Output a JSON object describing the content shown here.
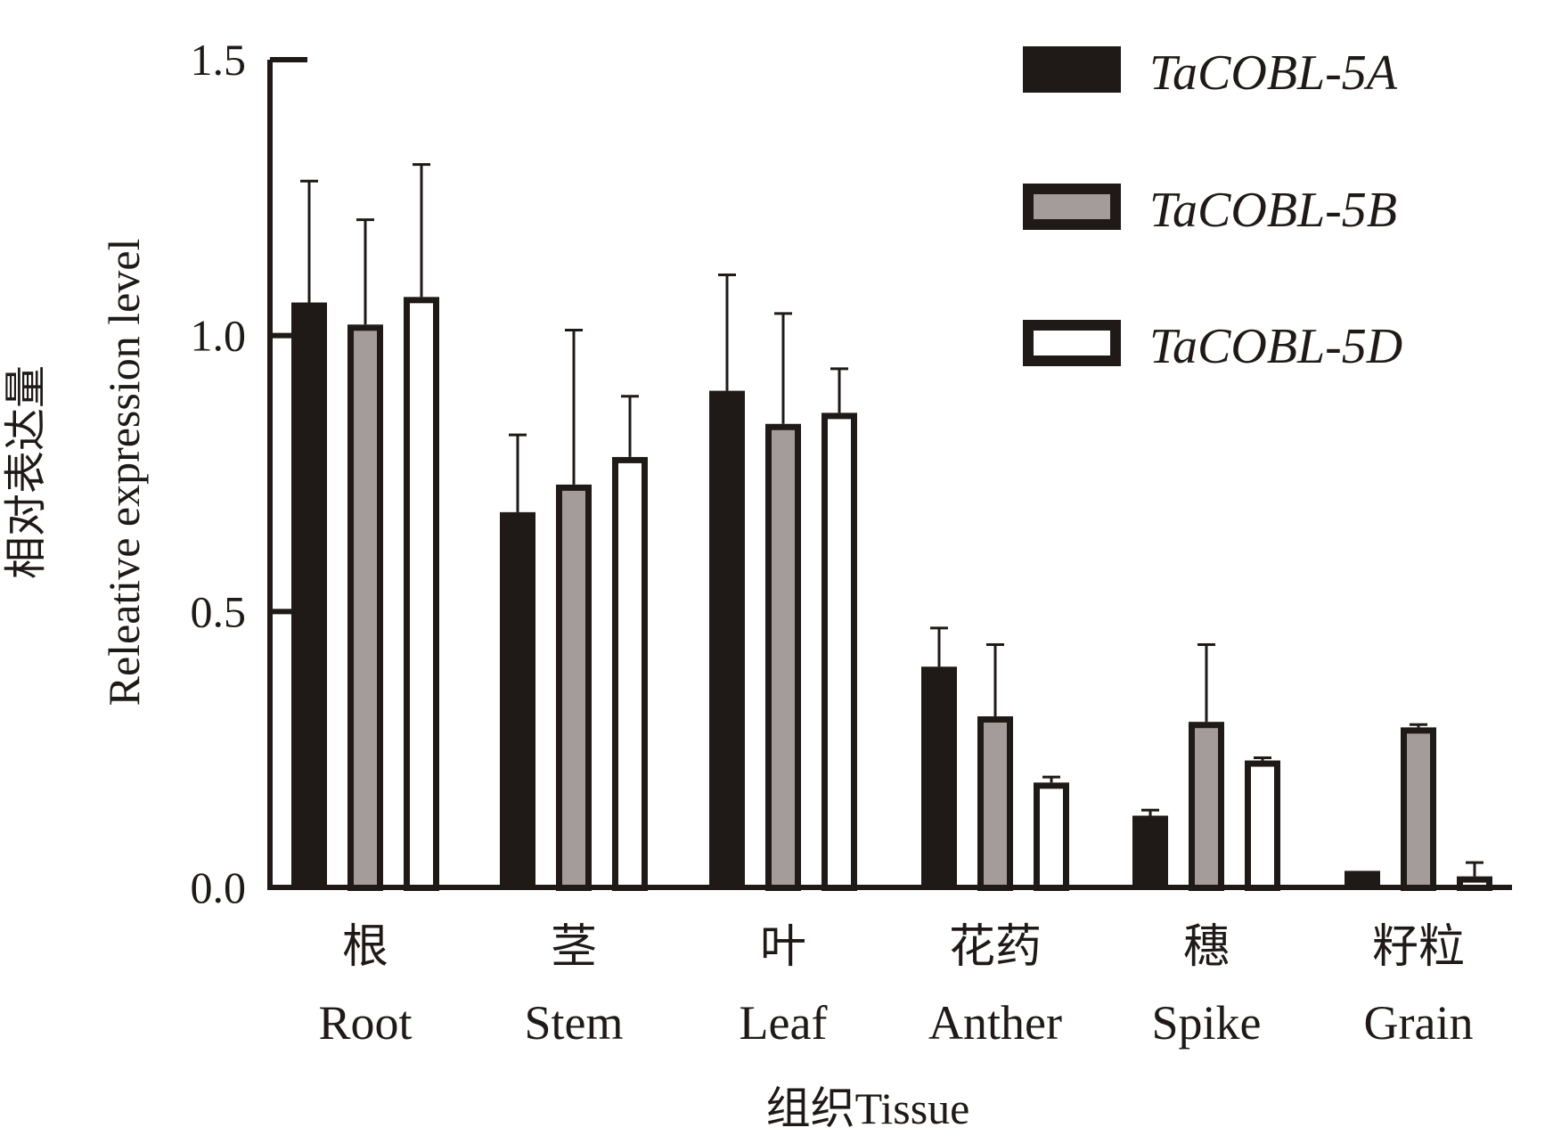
{
  "chart_data": {
    "type": "bar",
    "title": "",
    "xlabel_cn": "组织",
    "xlabel_en": "Tissue",
    "ylabel_cn": "相对表达量",
    "ylabel_en": "Releative expression level",
    "ylim": [
      0,
      1.5
    ],
    "yticks": [
      0.0,
      0.5,
      1.0,
      1.5
    ],
    "ytick_labels": [
      "0.0",
      "0.5",
      "1.0",
      "1.5"
    ],
    "categories": [
      {
        "cn": "根",
        "en": "Root"
      },
      {
        "cn": "茎",
        "en": "Stem"
      },
      {
        "cn": "叶",
        "en": "Leaf"
      },
      {
        "cn": "花药",
        "en": "Anther"
      },
      {
        "cn": "穗",
        "en": "Spike"
      },
      {
        "cn": "籽粒",
        "en": "Grain"
      }
    ],
    "legend_position": "top-right",
    "series": [
      {
        "name": "TaCOBL-5A",
        "style": "solid",
        "fill": "#1f1a17",
        "values": [
          1.06,
          0.68,
          0.9,
          0.4,
          0.13,
          0.03
        ],
        "errors": [
          0.22,
          0.14,
          0.21,
          0.07,
          0.01,
          0.0
        ]
      },
      {
        "name": "TaCOBL-5B",
        "style": "gray",
        "fill": "#a49c9a",
        "values": [
          1.02,
          0.73,
          0.84,
          0.31,
          0.3,
          0.29
        ],
        "errors": [
          0.19,
          0.28,
          0.2,
          0.13,
          0.14,
          0.005
        ]
      },
      {
        "name": "TaCOBL-5D",
        "style": "white",
        "fill": "#ffffff",
        "values": [
          1.07,
          0.78,
          0.86,
          0.19,
          0.23,
          0.02
        ],
        "errors": [
          0.24,
          0.11,
          0.08,
          0.01,
          0.005,
          0.025
        ]
      }
    ]
  }
}
